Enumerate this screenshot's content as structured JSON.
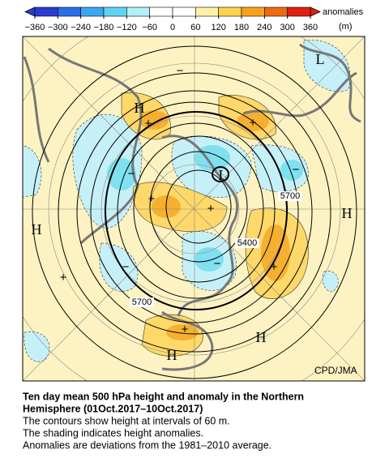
{
  "colorbar": {
    "ticks": [
      {
        "value": -360,
        "label": "−360"
      },
      {
        "value": -300,
        "label": "−300"
      },
      {
        "value": -240,
        "label": "−240"
      },
      {
        "value": -180,
        "label": "−180"
      },
      {
        "value": -120,
        "label": "−120"
      },
      {
        "value": -60,
        "label": "−60"
      },
      0,
      60,
      120,
      180,
      240,
      300,
      360
    ],
    "colors": [
      "#2b3bd0",
      "#2a6ee8",
      "#3aa6f0",
      "#5fd3f5",
      "#b4f0fa",
      "#ffffff",
      "#ffffff",
      "#fff2a8",
      "#ffd24a",
      "#f6a31a",
      "#ef6a10",
      "#e02010"
    ],
    "title": "anomalies",
    "unit": "(m)"
  },
  "map": {
    "labels": [
      "H",
      "L",
      "H",
      "H",
      "H",
      "H",
      "L",
      "+",
      "+",
      "+",
      "+",
      "+",
      "+",
      "+",
      "−",
      "−",
      "−",
      "−",
      "−"
    ],
    "contour_labels": [
      "5700",
      "5400",
      "5700"
    ],
    "credit": "CPD/JMA"
  },
  "caption": {
    "title": [
      "Ten day mean 500 hPa height and anomaly in the Northern",
      "Hemisphere (01Oct.2017–10Oct.2017)"
    ],
    "notes": [
      "The contours show height at intervals of 60 m.",
      "The shading indicates height anomalies.",
      "Anomalies are deviations from the 1981–2010 average."
    ]
  }
}
